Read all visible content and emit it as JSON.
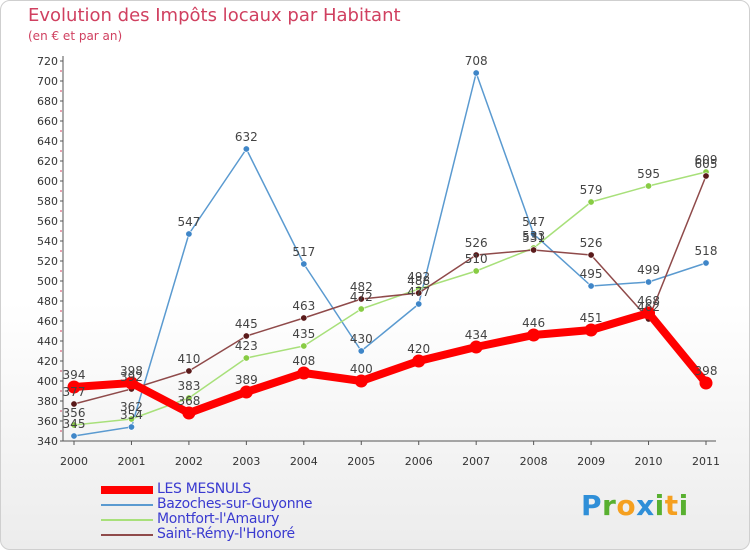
{
  "header": {
    "title": "Evolution des Impôts locaux par Habitant",
    "subtitle": "(en € et par an)"
  },
  "logo": {
    "text": "Proxiti",
    "letters": [
      {
        "char": "P",
        "color": "#2f8fd8"
      },
      {
        "char": "r",
        "color": "#58b030"
      },
      {
        "char": "o",
        "color": "#f5a020"
      },
      {
        "char": "x",
        "color": "#2f8fd8"
      },
      {
        "char": "i",
        "color": "#58b030"
      },
      {
        "char": "t",
        "color": "#f5a020"
      },
      {
        "char": "i",
        "color": "#58b030"
      }
    ]
  },
  "chart_data": {
    "type": "line",
    "title": "Evolution des Impôts locaux par Habitant",
    "subtitle": "(en € et par an)",
    "xlabel": "",
    "ylabel": "",
    "x": [
      "2000",
      "2001",
      "2002",
      "2003",
      "2004",
      "2005",
      "2006",
      "2007",
      "2008",
      "2009",
      "2010",
      "2011"
    ],
    "ylim": [
      340,
      720
    ],
    "yticks": [
      340,
      360,
      380,
      400,
      420,
      440,
      460,
      480,
      500,
      520,
      540,
      560,
      580,
      600,
      620,
      640,
      660,
      680,
      700,
      720
    ],
    "grid": false,
    "legend_position": "bottom-left",
    "series": [
      {
        "name": "Bazoches-sur-Guyonne",
        "color": "#5a9ad0",
        "marker": "#3f86c8",
        "values": [
          345,
          354,
          547,
          632,
          517,
          430,
          477,
          708,
          547,
          495,
          499,
          518
        ]
      },
      {
        "name": "Montfort-l'Amaury",
        "color": "#a8e07a",
        "marker": "#88cc44",
        "values": [
          356,
          362,
          383,
          423,
          435,
          472,
          492,
          510,
          533,
          579,
          595,
          609
        ]
      },
      {
        "name": "Saint-Rémy-l'Honoré",
        "color": "#8f4a4a",
        "marker": "#5a1a1a",
        "values": [
          377,
          392,
          410,
          445,
          463,
          482,
          488,
          526,
          531,
          526,
          462,
          605
        ]
      },
      {
        "name": "LES MESNULS",
        "color": "#ff0000",
        "marker": "#ff0000",
        "values": [
          394,
          398,
          368,
          389,
          408,
          400,
          420,
          434,
          446,
          451,
          468,
          398
        ]
      }
    ]
  }
}
